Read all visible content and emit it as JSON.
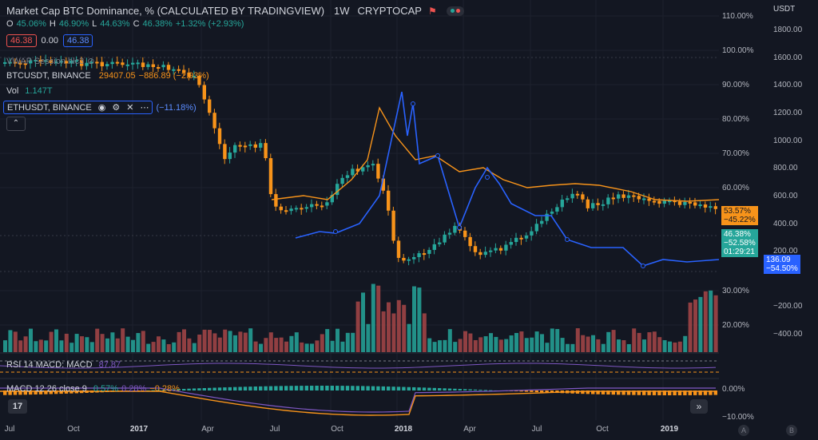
{
  "header": {
    "title": "Market Cap BTC Dominance, % (CALCULATED BY TRADINGVIEW)",
    "interval": "1W",
    "source": "CRYPTOCAP",
    "ohlc": {
      "o_label": "O",
      "o": "45.06%",
      "h_label": "H",
      "h": "46.90%",
      "l_label": "L",
      "l": "44.63%",
      "c_label": "C",
      "c": "46.38%",
      "change": "+1.32% (+2.93%)"
    },
    "trade_boxes": {
      "sell": "46.38",
      "spread": "0.00",
      "buy": "46.38"
    }
  },
  "indicators": {
    "vwap": "VWAP Session hlc3",
    "btc": {
      "name": "BTCUSDT, BINANCE",
      "price": "29407.05",
      "change": "−886.89 (−2.93%)"
    },
    "vol": {
      "label": "Vol",
      "value": "1.147T"
    },
    "eth": {
      "name": "ETHUSDT, BINANCE",
      "change": "(−11.18%)"
    },
    "rsi": {
      "label": "RSI 14 MACD: MACD",
      "value": "87.87"
    },
    "macd": {
      "label": "MACD 12 26 close 9",
      "v1": "0.57%",
      "v2": "0.28%",
      "v3": "−0.28%"
    }
  },
  "axis_pct": [
    "110.00%",
    "100.00%",
    "90.00%",
    "80.00%",
    "70.00%",
    "60.00%",
    "30.00%",
    "20.00%",
    "0.00%",
    "−10.00%"
  ],
  "axis_usdt": {
    "unit": "USDT",
    "labels": [
      "1800.00",
      "1600.00",
      "1400.00",
      "1200.00",
      "1000.00",
      "800.00",
      "600.00",
      "400.00",
      "200.00",
      "−200.00",
      "−400.00"
    ]
  },
  "price_tags": {
    "btc": {
      "pct": "53.57%",
      "chg": "−45.22%",
      "color": "#f7931a"
    },
    "dom": {
      "pct": "46.38%",
      "chg": "−52.58%",
      "timer": "01:29:21",
      "color": "#26a69a"
    },
    "eth": {
      "val": "136.09",
      "chg": "−54.50%",
      "color": "#2962ff"
    }
  },
  "x_axis": [
    "Jul",
    "Oct",
    "2017",
    "Apr",
    "Jul",
    "Oct",
    "2018",
    "Apr",
    "Jul",
    "Oct",
    "2019"
  ],
  "footer": {
    "logo": "17",
    "a": "A",
    "b": "B"
  },
  "colors": {
    "bg": "#131722",
    "up": "#26a69a",
    "down": "#f7931a",
    "eth": "#2962ff",
    "btc": "#f7931a"
  },
  "chart_data": {
    "type": "line",
    "series": [
      {
        "name": "BTCUSDT, BINANCE",
        "x": [
          "2017",
          "Apr",
          "Jul",
          "Oct",
          "2018",
          "Apr",
          "Jul",
          "Oct",
          "2019"
        ],
        "values": [
          86,
          87,
          58,
          60,
          80,
          62,
          67,
          60,
          57
        ]
      },
      {
        "name": "ETHUSDT, BINANCE",
        "x": [
          "2017",
          "Apr",
          "Jul",
          "Oct",
          "2018",
          "Apr",
          "Jul",
          "Oct",
          "2019"
        ],
        "values": [
          0,
          0,
          44,
          46,
          86,
          44,
          53,
          40,
          38
        ]
      }
    ],
    "ylabel": "",
    "ylim": [
      -10,
      110
    ]
  }
}
